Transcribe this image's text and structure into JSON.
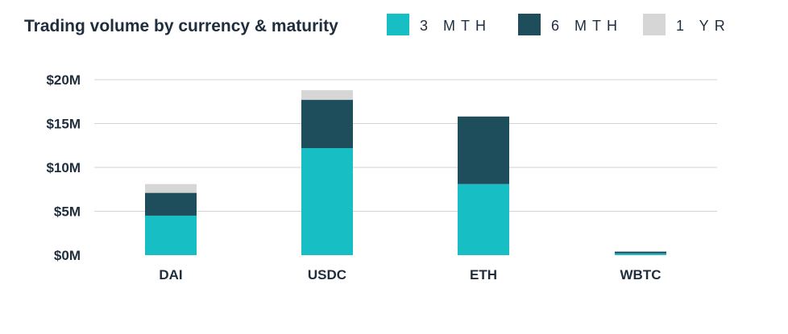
{
  "chart_data": {
    "type": "bar",
    "stacked": true,
    "title": "Trading volume by currency & maturity",
    "xlabel": "",
    "ylabel": "",
    "categories": [
      "DAI",
      "USDC",
      "ETH",
      "WBTC"
    ],
    "series": [
      {
        "name": "3 MTH",
        "color": "#17bec4",
        "values": [
          4.5,
          12.2,
          8.1,
          0.2
        ]
      },
      {
        "name": "6 MTH",
        "color": "#1e4d5c",
        "values": [
          2.6,
          5.5,
          7.7,
          0.2
        ]
      },
      {
        "name": "1 YR",
        "color": "#d6d6d6",
        "values": [
          1.0,
          1.1,
          0.0,
          0.0
        ]
      }
    ],
    "ylim": [
      0,
      20
    ],
    "yticks": [
      0,
      5,
      10,
      15,
      20
    ],
    "ytick_labels": [
      "$0M",
      "$5M",
      "$10M",
      "$15M",
      "$20M"
    ],
    "grid": true,
    "legend_position": "top-right"
  }
}
